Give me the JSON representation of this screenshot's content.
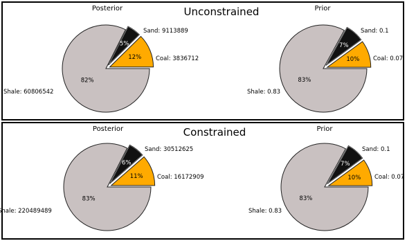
{
  "chart_data": [
    {
      "type": "pie",
      "title": "Posterior",
      "group_title": "Unconstrained",
      "slices": [
        {
          "label": "Sand",
          "value": 9113889,
          "display": "9113889",
          "pct": "12%",
          "color": "#ffaa00",
          "explode": true
        },
        {
          "label": "Coal",
          "value": 3836712,
          "display": "3836712",
          "pct": "5%",
          "color": "#111111",
          "explode": true
        },
        {
          "label": "Shale",
          "value": 60806542,
          "display": "60806542",
          "pct": "82%",
          "color": "#c9c1c1",
          "explode": false
        }
      ]
    },
    {
      "type": "pie",
      "title": "Prior",
      "group_title": "Unconstrained",
      "slices": [
        {
          "label": "Sand",
          "value": 0.1,
          "display": "0.1",
          "pct": "10%",
          "color": "#ffaa00",
          "explode": true
        },
        {
          "label": "Coal",
          "value": 0.07,
          "display": "0.07",
          "pct": "7%",
          "color": "#111111",
          "explode": true
        },
        {
          "label": "Shale",
          "value": 0.83,
          "display": "0.83",
          "pct": "83%",
          "color": "#c9c1c1",
          "explode": false
        }
      ]
    },
    {
      "type": "pie",
      "title": "Posterior",
      "group_title": "Constrained",
      "slices": [
        {
          "label": "Sand",
          "value": 30512625,
          "display": "30512625",
          "pct": "11%",
          "color": "#ffaa00",
          "explode": true
        },
        {
          "label": "Coal",
          "value": 16172909,
          "display": "16172909",
          "pct": "6%",
          "color": "#111111",
          "explode": true
        },
        {
          "label": "Shale",
          "value": 220489489,
          "display": "220489489",
          "pct": "83%",
          "color": "#c9c1c1",
          "explode": false
        }
      ]
    },
    {
      "type": "pie",
      "title": "Prior",
      "group_title": "Constrained",
      "slices": [
        {
          "label": "Sand",
          "value": 0.1,
          "display": "0.1",
          "pct": "10%",
          "color": "#ffaa00",
          "explode": true
        },
        {
          "label": "Coal",
          "value": 0.07,
          "display": "0.07",
          "pct": "7%",
          "color": "#111111",
          "explode": true
        },
        {
          "label": "Shale",
          "value": 0.83,
          "display": "0.83",
          "pct": "83%",
          "color": "#c9c1c1",
          "explode": false
        }
      ]
    }
  ],
  "groups": {
    "top": "Unconstrained",
    "bottom": "Constrained"
  }
}
